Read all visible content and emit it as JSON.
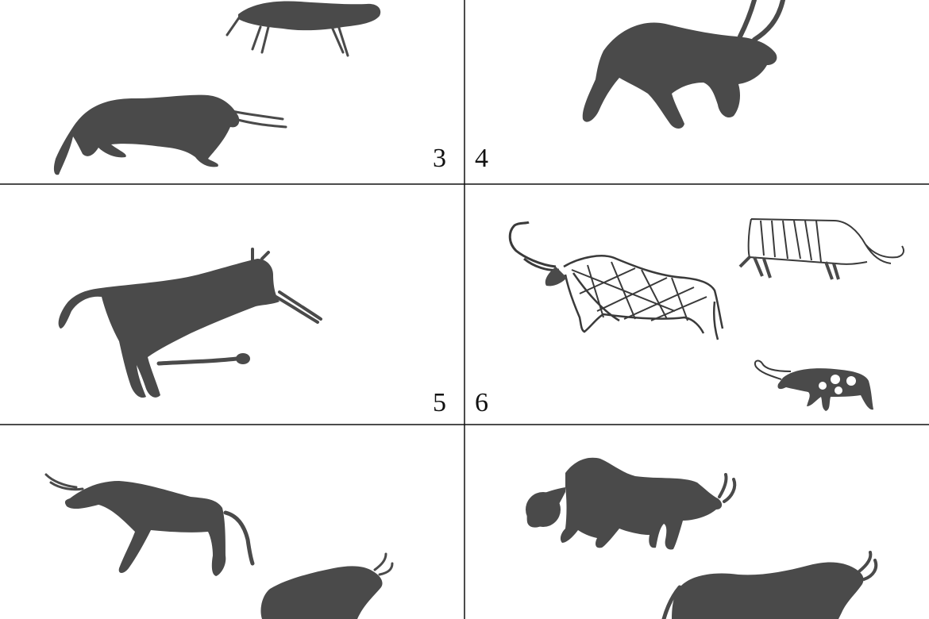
{
  "panels": [
    {
      "number": "3"
    },
    {
      "number": "4"
    },
    {
      "number": "5"
    },
    {
      "number": "6"
    }
  ],
  "colors": {
    "silhouette": "#4a4a4a",
    "outline": "#3a3a3a",
    "grid_line": "#111111",
    "background": "#ffffff"
  }
}
